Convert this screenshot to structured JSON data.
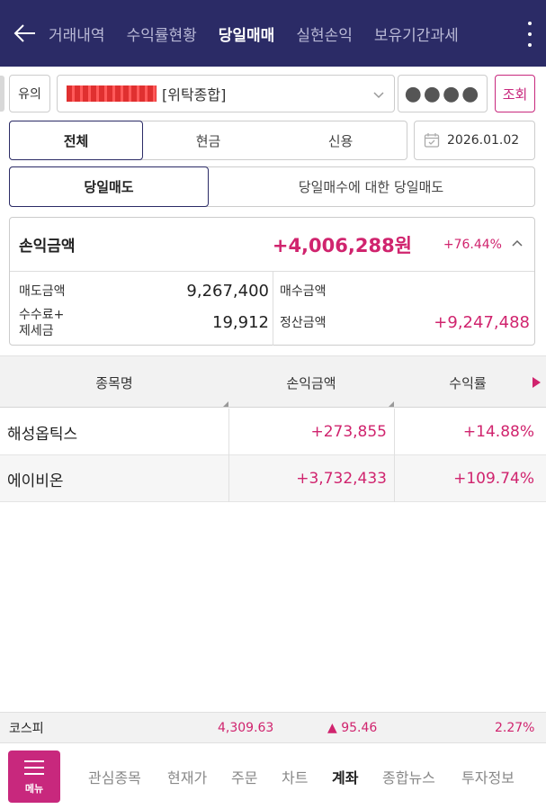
{
  "header": {
    "tabs": [
      "거래내역",
      "수익률현황",
      "당일매매",
      "실현손익",
      "보유기간과세"
    ],
    "active_tab": 2
  },
  "account": {
    "warn_label": "유의",
    "account_type": "[위탁종합]",
    "password_mask": "●●●●",
    "query_label": "조회"
  },
  "filter": {
    "segments": [
      "전체",
      "현금",
      "신용"
    ],
    "date": "2026.01.02",
    "sub_segments": [
      "당일매도",
      "당일매수에 대한 당일매도"
    ]
  },
  "summary": {
    "pl_label": "손익금액",
    "pl_amount": "+4,006,288원",
    "pl_rate": "+76.44%",
    "sell_amount_label": "매도금액",
    "sell_amount": "9,267,400",
    "fee_tax_label_1": "수수료+",
    "fee_tax_label_2": "제세금",
    "fee_tax": "19,912",
    "buy_amount_label": "매수금액",
    "buy_amount": "",
    "settle_amount_label": "정산금액",
    "settle_amount": "+9,247,488"
  },
  "table": {
    "headers": [
      "종목명",
      "손익금액",
      "수익률"
    ],
    "rows": [
      {
        "name": "해성옵틱스",
        "pl": "+273,855",
        "rate": "+14.88%"
      },
      {
        "name": "에이비온",
        "pl": "+3,732,433",
        "rate": "+109.74%"
      }
    ]
  },
  "ticker": {
    "name": "코스피",
    "value": "4,309.63",
    "change": "▲ 95.46",
    "pct": "2.27%"
  },
  "bottom_nav": {
    "menu_label": "메뉴",
    "items": [
      "관심종목",
      "현재가",
      "주문",
      "차트",
      "계좌",
      "종합뉴스",
      "투자정보"
    ],
    "active": 4
  },
  "colors": {
    "header_bg": "#2b2b66",
    "accent": "#c8287d",
    "profit": "#d0246e"
  }
}
